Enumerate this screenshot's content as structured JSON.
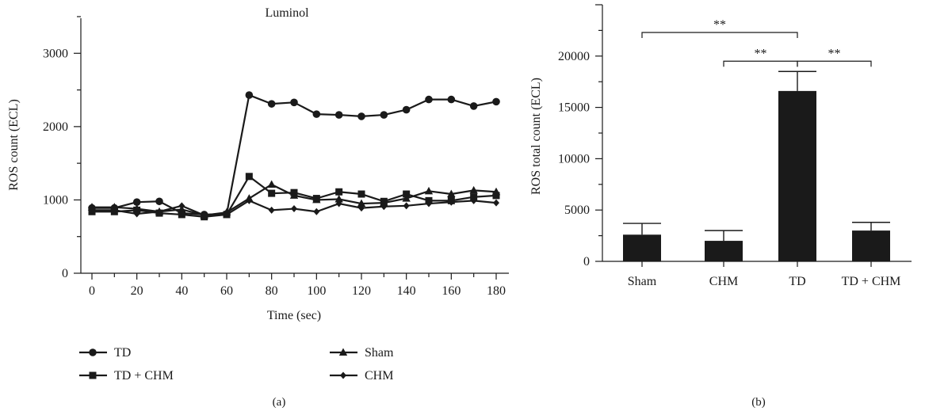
{
  "chart_data": [
    {
      "type": "line",
      "panel_label": "(a)",
      "title": "Luminol",
      "xlabel": "Time (sec)",
      "ylabel": "ROS count (ECL)",
      "xlim": [
        0,
        180
      ],
      "ylim": [
        0,
        3500
      ],
      "xticks": [
        0,
        20,
        40,
        60,
        80,
        100,
        120,
        140,
        160,
        180
      ],
      "yticks": [
        0,
        1000,
        2000,
        3000
      ],
      "x": [
        0,
        10,
        20,
        30,
        40,
        50,
        60,
        70,
        80,
        90,
        100,
        110,
        120,
        130,
        140,
        150,
        160,
        170,
        180
      ],
      "series": [
        {
          "name": "TD",
          "marker": "circle",
          "values": [
            890,
            890,
            970,
            980,
            820,
            800,
            810,
            2430,
            2310,
            2330,
            2170,
            2160,
            2140,
            2160,
            2230,
            2370,
            2370,
            2280,
            2340
          ]
        },
        {
          "name": "TD + CHM",
          "marker": "square",
          "values": [
            840,
            840,
            860,
            820,
            800,
            770,
            800,
            1320,
            1090,
            1100,
            1020,
            1110,
            1080,
            980,
            1080,
            990,
            990,
            1040,
            1060
          ]
        },
        {
          "name": "Sham",
          "marker": "triangle",
          "values": [
            900,
            900,
            880,
            840,
            870,
            790,
            830,
            1020,
            1210,
            1060,
            1000,
            1010,
            950,
            960,
            1020,
            1120,
            1080,
            1130,
            1110
          ]
        },
        {
          "name": "CHM",
          "marker": "diamond",
          "values": [
            860,
            860,
            810,
            840,
            920,
            790,
            800,
            990,
            860,
            880,
            840,
            950,
            890,
            910,
            920,
            950,
            970,
            990,
            960
          ]
        }
      ],
      "legend_position": "bottom"
    },
    {
      "type": "bar",
      "panel_label": "(b)",
      "title": "",
      "xlabel": "",
      "ylabel": "ROS total count (ECL)",
      "ylim": [
        0,
        25000
      ],
      "yticks": [
        0,
        5000,
        10000,
        15000,
        20000
      ],
      "categories": [
        "Sham",
        "CHM",
        "TD",
        "TD + CHM"
      ],
      "values": [
        2600,
        2000,
        16600,
        3000
      ],
      "errors": [
        1100,
        1000,
        1900,
        800
      ],
      "significance": [
        {
          "from": "Sham",
          "to": "TD",
          "label": "**"
        },
        {
          "from": "CHM",
          "to": "TD",
          "label": "**"
        },
        {
          "from": "TD",
          "to": "TD + CHM",
          "label": "**"
        }
      ]
    }
  ]
}
